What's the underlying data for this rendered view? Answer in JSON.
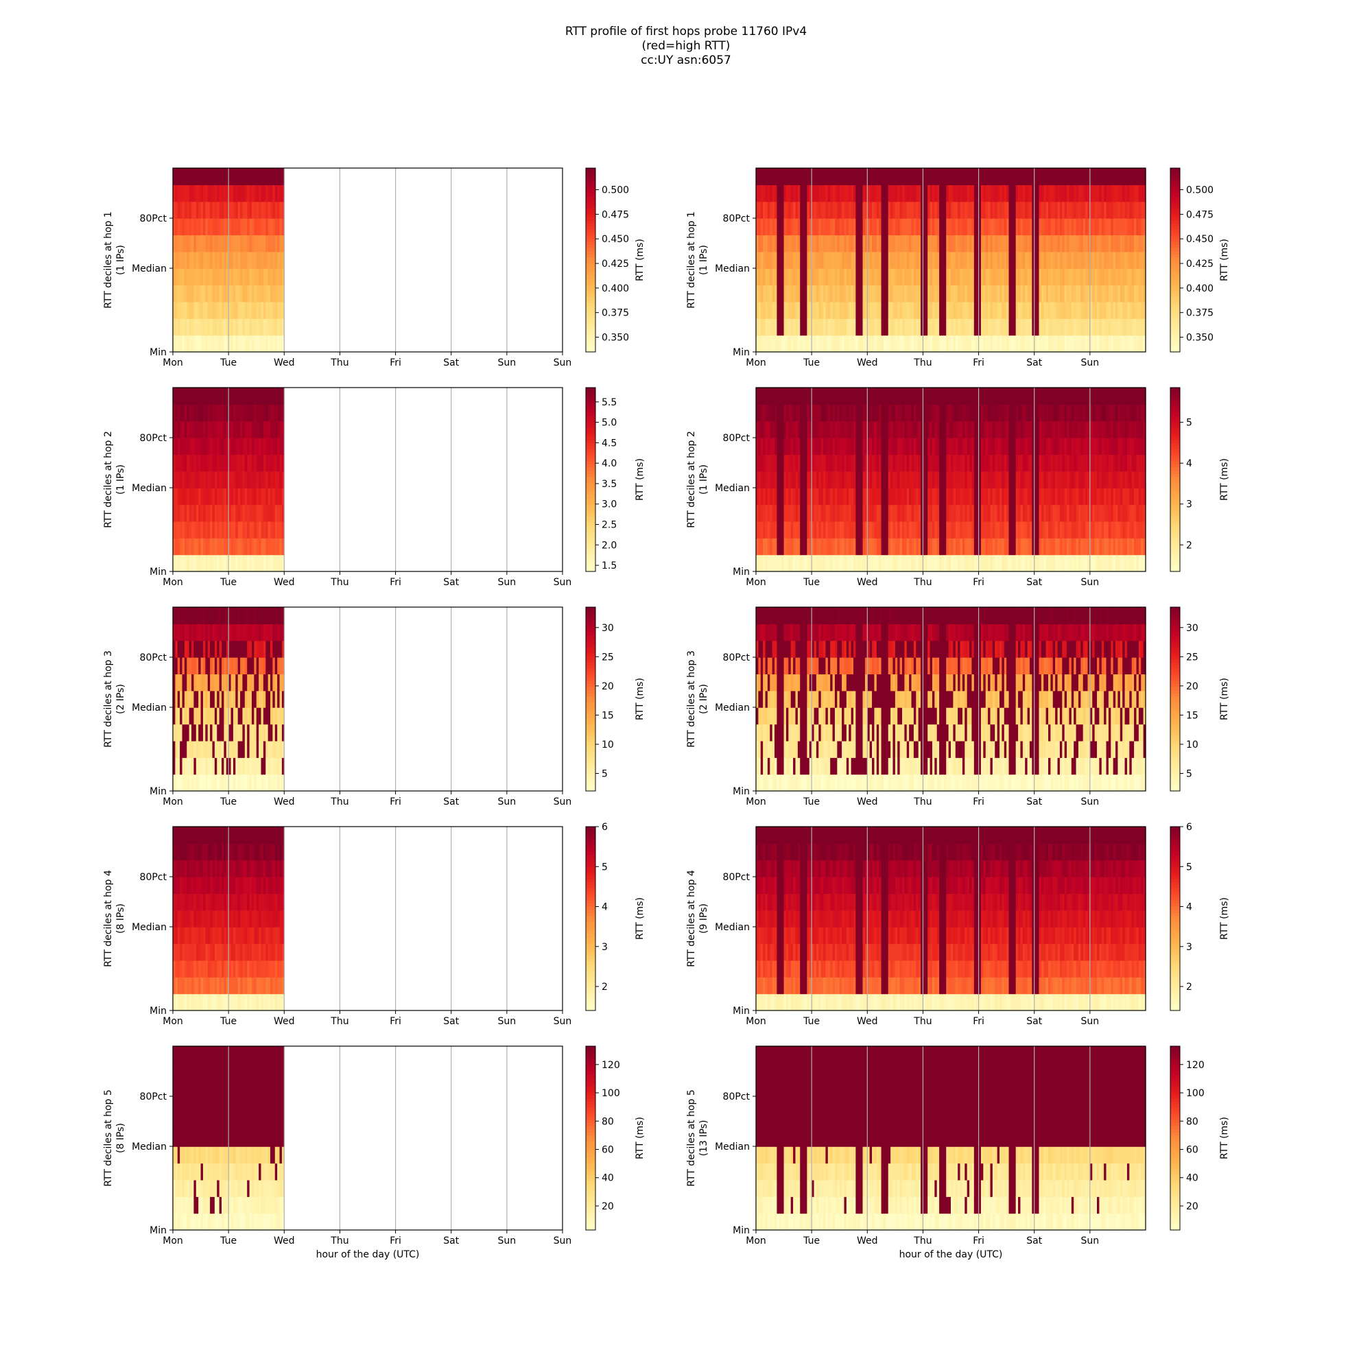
{
  "figure": {
    "title_lines": [
      "RTT profile of first hops probe 11760 IPv4",
      "(red=high RTT)",
      "cc:UY asn:6057"
    ],
    "xlabel": "hour of the day (UTC)"
  },
  "chart_data": [
    {
      "type": "heatmap",
      "hop": 1,
      "panel": "left",
      "ylabel": "RTT deciles at hop 1",
      "ips": "(1 IPs)",
      "xticks": [
        "Mon",
        "Tue",
        "Wed",
        "Thu",
        "Fri",
        "Sat",
        "Sun"
      ],
      "yticks": [
        "Min",
        "Median",
        "80Pct"
      ],
      "data_days": 2,
      "colorbar": {
        "label": "RTT (ms)",
        "min": 0.335,
        "max": 0.522,
        "ticks": [
          0.35,
          0.375,
          0.4,
          0.425,
          0.45,
          0.475,
          0.5
        ],
        "tick_labels": [
          "0.350",
          "0.375",
          "0.400",
          "0.425",
          "0.450",
          "0.475",
          "0.500"
        ]
      },
      "decile_ms": [
        0.345,
        0.37,
        0.385,
        0.395,
        0.405,
        0.415,
        0.43,
        0.45,
        0.465,
        0.48,
        0.53
      ]
    },
    {
      "type": "heatmap",
      "hop": 1,
      "panel": "right",
      "ylabel": "RTT deciles at hop 1",
      "ips": "(1 IPs)",
      "xticks": [
        "Mon",
        "Tue",
        "Wed",
        "Thu",
        "Fri",
        "Sat",
        "Sun"
      ],
      "yticks": [
        "Min",
        "Median",
        "80Pct"
      ],
      "data_days": 7,
      "colorbar": {
        "label": "RTT (ms)",
        "min": 0.335,
        "max": 0.522,
        "ticks": [
          0.35,
          0.375,
          0.4,
          0.425,
          0.45,
          0.475,
          0.5
        ],
        "tick_labels": [
          "0.350",
          "0.375",
          "0.400",
          "0.425",
          "0.450",
          "0.475",
          "0.500"
        ]
      },
      "decile_ms": [
        0.345,
        0.37,
        0.385,
        0.395,
        0.405,
        0.415,
        0.43,
        0.45,
        0.465,
        0.48,
        0.53
      ]
    },
    {
      "type": "heatmap",
      "hop": 2,
      "panel": "left",
      "ylabel": "RTT deciles at hop 2",
      "ips": "(1 IPs)",
      "xticks": [
        "Mon",
        "Tue",
        "Wed",
        "Thu",
        "Fri",
        "Sat",
        "Sun"
      ],
      "yticks": [
        "Min",
        "Median",
        "80Pct"
      ],
      "data_days": 2,
      "colorbar": {
        "label": "RTT (ms)",
        "min": 1.35,
        "max": 5.85,
        "ticks": [
          1.5,
          2.0,
          2.5,
          3.0,
          3.5,
          4.0,
          4.5,
          5.0,
          5.5
        ],
        "tick_labels": [
          "1.5",
          "2.0",
          "2.5",
          "3.0",
          "3.5",
          "4.0",
          "4.5",
          "5.0",
          "5.5"
        ]
      },
      "decile_ms": [
        1.6,
        4.0,
        4.3,
        4.5,
        4.7,
        4.9,
        5.1,
        5.3,
        5.5,
        5.7,
        6.0
      ]
    },
    {
      "type": "heatmap",
      "hop": 2,
      "panel": "right",
      "ylabel": "RTT deciles at hop 2",
      "ips": "(1 IPs)",
      "xticks": [
        "Mon",
        "Tue",
        "Wed",
        "Thu",
        "Fri",
        "Sat",
        "Sun"
      ],
      "yticks": [
        "Min",
        "Median",
        "80Pct"
      ],
      "data_days": 7,
      "colorbar": {
        "label": "RTT (ms)",
        "min": 1.35,
        "max": 5.85,
        "ticks": [
          2,
          3,
          4,
          5
        ],
        "tick_labels": [
          "2",
          "3",
          "4",
          "5"
        ]
      },
      "decile_ms": [
        1.6,
        4.0,
        4.3,
        4.5,
        4.7,
        4.9,
        5.1,
        5.3,
        5.5,
        5.7,
        6.0
      ]
    },
    {
      "type": "heatmap",
      "hop": 3,
      "panel": "left",
      "ylabel": "RTT deciles at hop 3",
      "ips": "(2 IPs)",
      "xticks": [
        "Mon",
        "Tue",
        "Wed",
        "Thu",
        "Fri",
        "Sat",
        "Sun"
      ],
      "yticks": [
        "Min",
        "Median",
        "80Pct"
      ],
      "data_days": 2,
      "colorbar": {
        "label": "RTT (ms)",
        "min": 2,
        "max": 33.5,
        "ticks": [
          5,
          10,
          15,
          20,
          25,
          30
        ],
        "tick_labels": [
          "5",
          "10",
          "15",
          "20",
          "25",
          "30"
        ]
      },
      "decile_ms": [
        3,
        5,
        7,
        8,
        10,
        12,
        15,
        20,
        26,
        30,
        34
      ]
    },
    {
      "type": "heatmap",
      "hop": 3,
      "panel": "right",
      "ylabel": "RTT deciles at hop 3",
      "ips": "(2 IPs)",
      "xticks": [
        "Mon",
        "Tue",
        "Wed",
        "Thu",
        "Fri",
        "Sat",
        "Sun"
      ],
      "yticks": [
        "Min",
        "Median",
        "80Pct"
      ],
      "data_days": 7,
      "colorbar": {
        "label": "RTT (ms)",
        "min": 2,
        "max": 33.5,
        "ticks": [
          5,
          10,
          15,
          20,
          25,
          30
        ],
        "tick_labels": [
          "5",
          "10",
          "15",
          "20",
          "25",
          "30"
        ]
      },
      "decile_ms": [
        3,
        5,
        7,
        8,
        10,
        12,
        15,
        20,
        26,
        30,
        34
      ]
    },
    {
      "type": "heatmap",
      "hop": 4,
      "panel": "left",
      "ylabel": "RTT deciles at hop 4",
      "ips": "(8 IPs)",
      "xticks": [
        "Mon",
        "Tue",
        "Wed",
        "Thu",
        "Fri",
        "Sat",
        "Sun"
      ],
      "yticks": [
        "Min",
        "Median",
        "80Pct"
      ],
      "data_days": 2,
      "colorbar": {
        "label": "RTT (ms)",
        "min": 1.4,
        "max": 6.0,
        "ticks": [
          2,
          3,
          4,
          5,
          6
        ],
        "tick_labels": [
          "2",
          "3",
          "4",
          "5",
          "6"
        ]
      },
      "decile_ms": [
        1.7,
        4.0,
        4.3,
        4.6,
        4.8,
        5.0,
        5.2,
        5.4,
        5.6,
        5.9,
        6.2
      ]
    },
    {
      "type": "heatmap",
      "hop": 4,
      "panel": "right",
      "ylabel": "RTT deciles at hop 4",
      "ips": "(9 IPs)",
      "xticks": [
        "Mon",
        "Tue",
        "Wed",
        "Thu",
        "Fri",
        "Sat",
        "Sun"
      ],
      "yticks": [
        "Min",
        "Median",
        "80Pct"
      ],
      "data_days": 7,
      "colorbar": {
        "label": "RTT (ms)",
        "min": 1.4,
        "max": 6.0,
        "ticks": [
          2,
          3,
          4,
          5,
          6
        ],
        "tick_labels": [
          "2",
          "3",
          "4",
          "5",
          "6"
        ]
      },
      "decile_ms": [
        1.7,
        4.0,
        4.3,
        4.6,
        4.8,
        5.0,
        5.2,
        5.4,
        5.6,
        5.9,
        6.2
      ]
    },
    {
      "type": "heatmap",
      "hop": 5,
      "panel": "left",
      "ylabel": "RTT deciles at hop 5",
      "ips": "(8 IPs)",
      "xticks": [
        "Mon",
        "Tue",
        "Wed",
        "Thu",
        "Fri",
        "Sat",
        "Sun"
      ],
      "yticks": [
        "Min",
        "Median",
        "80Pct"
      ],
      "data_days": 2,
      "colorbar": {
        "label": "RTT (ms)",
        "min": 3,
        "max": 133,
        "ticks": [
          20,
          40,
          60,
          80,
          100,
          120
        ],
        "tick_labels": [
          "20",
          "40",
          "60",
          "80",
          "100",
          "120"
        ]
      },
      "decile_ms": [
        8,
        12,
        18,
        24,
        33,
        140,
        140,
        140,
        140,
        140,
        140
      ]
    },
    {
      "type": "heatmap",
      "hop": 5,
      "panel": "right",
      "ylabel": "RTT deciles at hop 5",
      "ips": "(13 IPs)",
      "xticks": [
        "Mon",
        "Tue",
        "Wed",
        "Thu",
        "Fri",
        "Sat",
        "Sun"
      ],
      "yticks": [
        "Min",
        "Median",
        "80Pct"
      ],
      "data_days": 7,
      "colorbar": {
        "label": "RTT (ms)",
        "min": 3,
        "max": 133,
        "ticks": [
          20,
          40,
          60,
          80,
          100,
          120
        ],
        "tick_labels": [
          "20",
          "40",
          "60",
          "80",
          "100",
          "120"
        ]
      },
      "decile_ms": [
        8,
        12,
        18,
        24,
        33,
        140,
        140,
        140,
        140,
        140,
        140
      ]
    }
  ]
}
